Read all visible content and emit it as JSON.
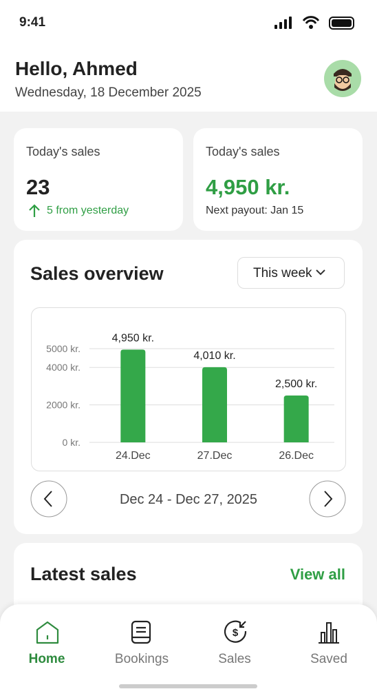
{
  "status_bar": {
    "time": "9:41"
  },
  "header": {
    "greeting": "Hello, Ahmed",
    "date": "Wednesday, 18 December 2025"
  },
  "stats": [
    {
      "label": "Today's sales",
      "value": "23",
      "note": "5 from yesterday"
    },
    {
      "label": "Today's sales",
      "value": "4,950 kr.",
      "note": "Next payout: Jan 15"
    }
  ],
  "sales_overview": {
    "title": "Sales overview",
    "period": "This week",
    "range": "Dec 24 - Dec 27, 2025"
  },
  "chart_data": {
    "type": "bar",
    "categories": [
      "24.Dec",
      "27.Dec",
      "26.Dec"
    ],
    "values": [
      4950,
      4010,
      2500
    ],
    "value_labels": [
      "4,950 kr.",
      "4,010 kr.",
      "2,500 kr."
    ],
    "color": "#34a84a",
    "ylim": [
      0,
      5000
    ],
    "yticks": [
      {
        "value": 0,
        "label": "0 kr."
      },
      {
        "value": 2000,
        "label": "2000 kr."
      },
      {
        "value": 4000,
        "label": "4000 kr."
      },
      {
        "value": 5000,
        "label": "5000 kr."
      }
    ],
    "grid": true
  },
  "latest_sales": {
    "title": "Latest sales",
    "link": "View all"
  },
  "nav": [
    {
      "label": "Home"
    },
    {
      "label": "Bookings"
    },
    {
      "label": "Sales"
    },
    {
      "label": "Saved"
    }
  ]
}
